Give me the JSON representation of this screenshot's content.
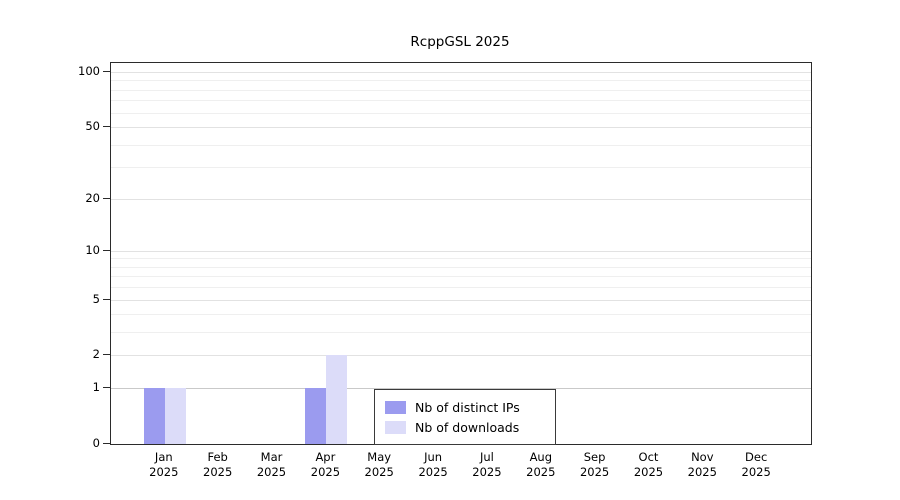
{
  "chart_data": {
    "type": "bar",
    "title": "RcppGSL 2025",
    "year_label": "2025",
    "categories": [
      "Jan",
      "Feb",
      "Mar",
      "Apr",
      "May",
      "Jun",
      "Jul",
      "Aug",
      "Sep",
      "Oct",
      "Nov",
      "Dec"
    ],
    "series": [
      {
        "name": "Nb of distinct IPs",
        "color": "#9b9bef",
        "values": [
          1,
          0,
          0,
          1,
          0,
          0,
          0,
          0,
          0,
          0,
          0,
          0
        ]
      },
      {
        "name": "Nb of downloads",
        "color": "#dcdcf9",
        "values": [
          1,
          0,
          0,
          2,
          0,
          0,
          0,
          0,
          0,
          0,
          0,
          0
        ]
      }
    ],
    "y_scale": "log1p",
    "ylim": [
      0,
      100
    ],
    "y_ticks": [
      100,
      50,
      20,
      10,
      5,
      2,
      1,
      0
    ],
    "grid_values": [
      1,
      2,
      3,
      4,
      5,
      6,
      7,
      8,
      9,
      10,
      20,
      30,
      40,
      50,
      60,
      70,
      80,
      90,
      100
    ],
    "grid": "horizontal",
    "legend_position": "inside-bottom-center"
  }
}
